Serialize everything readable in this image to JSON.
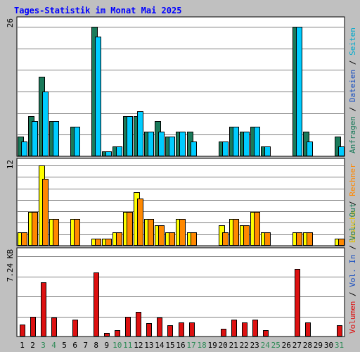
{
  "chart_data": {
    "type": "bar",
    "title": "Tages-Statistik im Monat Mai 2025",
    "categories": [
      "1",
      "2",
      "3",
      "4",
      "5",
      "6",
      "7",
      "8",
      "9",
      "10",
      "11",
      "12",
      "13",
      "14",
      "15",
      "16",
      "17",
      "18",
      "19",
      "20",
      "21",
      "22",
      "23",
      "24",
      "25",
      "26",
      "27",
      "28",
      "29",
      "30",
      "31"
    ],
    "weekend_days": [
      "3",
      "4",
      "10",
      "11",
      "17",
      "18",
      "24",
      "25",
      "31"
    ],
    "colors": {
      "background": "#c0c0c0",
      "panel": "#ffffff",
      "grid": "#808080",
      "title": "#0000ff",
      "weekend_tick": "#2e8b57",
      "hits": "#1a7a5a",
      "files": "#00ccff",
      "pages": "#00aacc",
      "visits": "#ffff00",
      "sites": "#ff8800",
      "kbytes": "#dd1111"
    },
    "panels": [
      {
        "id": "hits-files",
        "ymax": 26,
        "ymax_label": "26",
        "right_labels": [
          {
            "text": "Anfragen",
            "color": "#1a7a5a"
          },
          {
            "text": " / ",
            "color": "#000000"
          },
          {
            "text": "Dateien",
            "color": "#1a50c0"
          },
          {
            "text": " / ",
            "color": "#000000"
          },
          {
            "text": "Seiten",
            "color": "#00aacc"
          }
        ],
        "series": [
          {
            "name": "Anfragen",
            "color": "#1a7a5a",
            "values": [
              4,
              8,
              16,
              7,
              0,
              6,
              0,
              26,
              1,
              2,
              8,
              8,
              5,
              7,
              4,
              5,
              5,
              0,
              0,
              3,
              6,
              5,
              6,
              2,
              0,
              0,
              26,
              5,
              0,
              0,
              4
            ]
          },
          {
            "name": "Dateien",
            "color": "#00ccff",
            "values": [
              3,
              7,
              13,
              7,
              0,
              6,
              0,
              24,
              1,
              2,
              8,
              9,
              5,
              5,
              4,
              5,
              3,
              0,
              0,
              3,
              6,
              5,
              6,
              2,
              0,
              0,
              26,
              3,
              0,
              0,
              2
            ]
          }
        ]
      },
      {
        "id": "visits-sites",
        "ymax": 12,
        "ymax_label": "12",
        "right_labels": [
          {
            "text": "Besuche",
            "color": "#e0c000"
          },
          {
            "text": " / ",
            "color": "#000000"
          },
          {
            "text": "Rechner",
            "color": "#ff8800"
          }
        ],
        "series": [
          {
            "name": "Besuche",
            "color": "#ffff00",
            "values": [
              2,
              5,
              12,
              4,
              0,
              4,
              0,
              1,
              1,
              2,
              5,
              8,
              4,
              3,
              2,
              4,
              2,
              0,
              0,
              3,
              4,
              3,
              5,
              2,
              0,
              0,
              2,
              2,
              0,
              0,
              1
            ]
          },
          {
            "name": "Rechner",
            "color": "#ff8800",
            "values": [
              2,
              5,
              10,
              4,
              0,
              4,
              0,
              1,
              1,
              2,
              5,
              7,
              4,
              3,
              2,
              4,
              2,
              0,
              0,
              2,
              4,
              3,
              5,
              2,
              0,
              0,
              2,
              2,
              0,
              0,
              1
            ]
          }
        ]
      },
      {
        "id": "kbytes",
        "ymax": 7.24,
        "ymax_label": "7.24 KB",
        "right_labels": [
          {
            "text": "Volumen",
            "color": "#dd1111"
          },
          {
            "text": " / ",
            "color": "#000000"
          },
          {
            "text": "Vol. In",
            "color": "#1a50c0"
          },
          {
            "text": " / ",
            "color": "#000000"
          },
          {
            "text": "Vol. Out",
            "color": "#1a7a5a"
          }
        ],
        "series": [
          {
            "name": "Volumen",
            "color": "#dd1111",
            "values": [
              1.1,
              1.8,
              4.9,
              1.7,
              0,
              1.5,
              0,
              5.8,
              0.3,
              0.6,
              1.8,
              2.2,
              1.2,
              1.7,
              1.0,
              1.3,
              1.3,
              0,
              0,
              0.7,
              1.5,
              1.3,
              1.5,
              0.6,
              0,
              0,
              6.1,
              1.3,
              0,
              0,
              1.0
            ]
          }
        ]
      }
    ]
  }
}
